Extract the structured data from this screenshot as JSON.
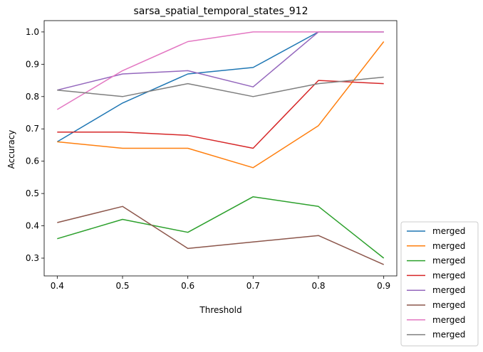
{
  "chart_data": {
    "type": "line",
    "title": "sarsa_spatial_temporal_states_912",
    "xlabel": "Threshold",
    "ylabel": "Accuracy",
    "x": [
      0.4,
      0.5,
      0.6,
      0.7,
      0.8,
      0.9
    ],
    "xlim": [
      0.38,
      0.92
    ],
    "ylim": [
      0.245,
      1.035
    ],
    "xticks": [
      "0.4",
      "0.5",
      "0.6",
      "0.7",
      "0.8",
      "0.9"
    ],
    "yticks": [
      "0.3",
      "0.4",
      "0.5",
      "0.6",
      "0.7",
      "0.8",
      "0.9",
      "1.0"
    ],
    "grid": false,
    "legend_position": "outside-bottom-right",
    "series": [
      {
        "name": "merged",
        "color": "#1f77b4",
        "values": [
          0.66,
          0.78,
          0.87,
          0.89,
          1.0,
          1.0
        ]
      },
      {
        "name": "merged",
        "color": "#ff7f0e",
        "values": [
          0.66,
          0.64,
          0.64,
          0.58,
          0.71,
          0.97
        ]
      },
      {
        "name": "merged",
        "color": "#2ca02c",
        "values": [
          0.36,
          0.42,
          0.38,
          0.49,
          0.46,
          0.3
        ]
      },
      {
        "name": "merged",
        "color": "#d62728",
        "values": [
          0.69,
          0.69,
          0.68,
          0.64,
          0.85,
          0.84
        ]
      },
      {
        "name": "merged",
        "color": "#9467bd",
        "values": [
          0.82,
          0.87,
          0.88,
          0.83,
          1.0,
          1.0
        ]
      },
      {
        "name": "merged",
        "color": "#8c564b",
        "values": [
          0.41,
          0.46,
          0.33,
          0.35,
          0.37,
          0.28
        ]
      },
      {
        "name": "merged",
        "color": "#e377c2",
        "values": [
          0.76,
          0.88,
          0.97,
          1.0,
          1.0,
          1.0
        ]
      },
      {
        "name": "merged",
        "color": "#7f7f7f",
        "values": [
          0.82,
          0.8,
          0.84,
          0.8,
          0.84,
          0.86
        ]
      }
    ]
  }
}
